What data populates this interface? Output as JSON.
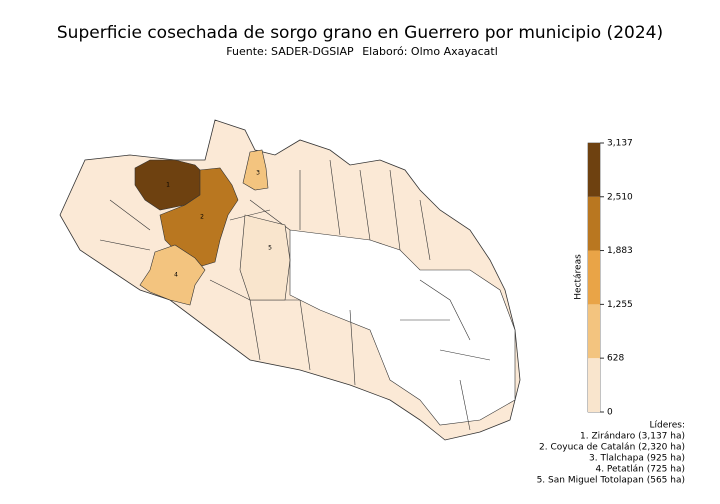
{
  "title": "Superficie cosechada de sorgo grano en Guerrero por municipio (2024)",
  "source": "Fuente: SADER-DGSIAP",
  "author": "Elaboró: Olmo Axayacatl",
  "colorbar": {
    "label": "Hectáreas",
    "lim": [
      0,
      3137
    ],
    "ticks": [
      0,
      628,
      {
        "value": 1255,
        "label": "1,255"
      },
      {
        "value": 1883,
        "label": "1,883"
      },
      {
        "value": 2510,
        "label": "2,510"
      },
      {
        "value": 3137,
        "label": "3,137"
      }
    ],
    "colors": [
      "#f9e5cd",
      "#f3c47f",
      "#e9a447",
      "#b97720",
      "#6e4110"
    ]
  },
  "leaders": {
    "heading": "Líderes:",
    "items": [
      {
        "rank": 1,
        "label": "1. Zirándaro (3,137 ha)",
        "value": 3137
      },
      {
        "rank": 2,
        "label": "2. Coyuca de Catalán (2,320 ha)",
        "value": 2320
      },
      {
        "rank": 3,
        "label": "3. Tlalchapa (925 ha)",
        "value": 925
      },
      {
        "rank": 4,
        "label": "4. Petatlán (725 ha)",
        "value": 725
      },
      {
        "rank": 5,
        "label": "5. San Miguel Totolapan (565 ha)",
        "value": 565
      }
    ]
  }
}
